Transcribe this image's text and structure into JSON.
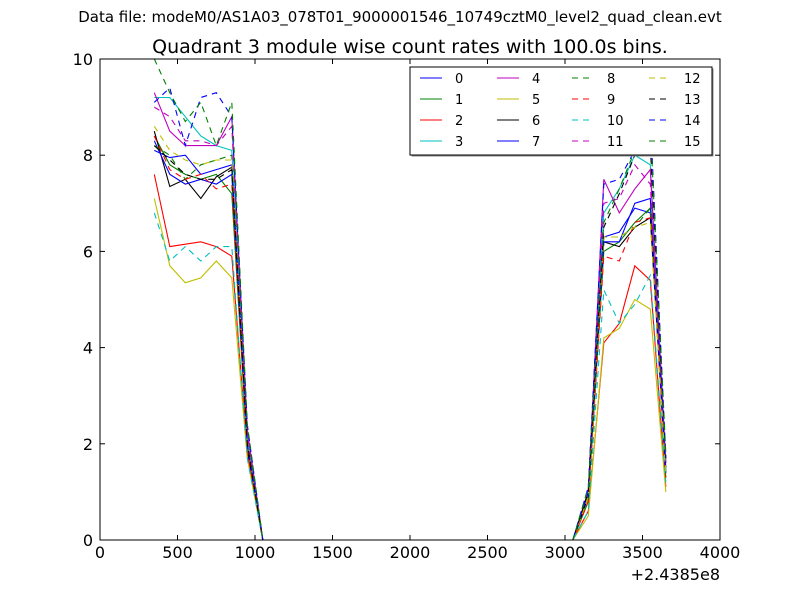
{
  "page_title": "Data file: modeM0/AS1A03_078T01_9000001546_10749cztM0_level2_quad_clean.evt",
  "chart_data": {
    "type": "line",
    "title": "Quadrant 3 module wise count rates with 100.0s bins.",
    "xlabel": "",
    "ylabel": "",
    "xlim": [
      0,
      4000
    ],
    "ylim": [
      0,
      10
    ],
    "x_ticks": [
      0,
      500,
      1000,
      1500,
      2000,
      2500,
      3000,
      3500,
      4000
    ],
    "y_ticks": [
      0,
      2,
      4,
      6,
      8,
      10
    ],
    "x_offset_label": "+2.4385e8",
    "grid": false,
    "legend_position": "top-right",
    "legend_columns": 4,
    "x": [
      350,
      450,
      550,
      650,
      750,
      850,
      950,
      1050,
      3050,
      3150,
      3250,
      3350,
      3450,
      3550,
      3650
    ],
    "series": [
      {
        "name": "0",
        "color": "#0000ff",
        "dash": "solid",
        "values": [
          8.1,
          7.95,
          8.0,
          7.6,
          7.7,
          7.8,
          2.0,
          0.0,
          0.0,
          0.9,
          6.3,
          6.4,
          6.9,
          6.8,
          1.5
        ]
      },
      {
        "name": "1",
        "color": "#008000",
        "dash": "solid",
        "values": [
          8.4,
          7.8,
          7.6,
          7.5,
          7.6,
          7.2,
          1.9,
          0.0,
          0.0,
          0.8,
          6.0,
          6.2,
          6.6,
          6.9,
          1.3
        ]
      },
      {
        "name": "2",
        "color": "#ff0000",
        "dash": "solid",
        "values": [
          7.6,
          6.1,
          6.15,
          6.2,
          6.1,
          5.9,
          1.8,
          0.0,
          0.0,
          0.6,
          4.1,
          4.5,
          5.7,
          5.4,
          1.1
        ]
      },
      {
        "name": "3",
        "color": "#00bfbf",
        "dash": "solid",
        "values": [
          9.2,
          9.2,
          8.8,
          8.4,
          8.2,
          8.1,
          2.2,
          0.0,
          0.0,
          1.0,
          6.8,
          7.3,
          8.0,
          7.8,
          1.6
        ]
      },
      {
        "name": "4",
        "color": "#bf00bf",
        "dash": "solid",
        "values": [
          9.3,
          8.5,
          8.2,
          8.2,
          8.2,
          8.8,
          2.3,
          0.0,
          0.0,
          1.0,
          7.5,
          6.8,
          7.3,
          7.7,
          1.6
        ]
      },
      {
        "name": "5",
        "color": "#bfbf00",
        "dash": "solid",
        "values": [
          7.1,
          5.7,
          5.35,
          5.45,
          5.8,
          5.45,
          1.7,
          0.0,
          0.0,
          0.5,
          4.2,
          4.4,
          5.0,
          4.8,
          1.0
        ]
      },
      {
        "name": "6",
        "color": "#000000",
        "dash": "solid",
        "values": [
          8.5,
          7.35,
          7.5,
          7.1,
          7.55,
          7.75,
          1.9,
          0.0,
          0.0,
          0.9,
          6.2,
          6.1,
          6.5,
          6.7,
          1.4
        ]
      },
      {
        "name": "7",
        "color": "#0000ff",
        "dash": "solid",
        "values": [
          8.3,
          7.6,
          7.4,
          7.5,
          7.4,
          7.6,
          2.0,
          0.0,
          0.0,
          1.0,
          6.2,
          6.2,
          7.0,
          7.1,
          1.4
        ]
      },
      {
        "name": "8",
        "color": "#008000",
        "dash": "dashed",
        "values": [
          8.2,
          8.0,
          7.5,
          7.8,
          7.9,
          8.0,
          2.0,
          0.0,
          0.0,
          0.9,
          6.3,
          6.3,
          6.5,
          6.9,
          1.5
        ]
      },
      {
        "name": "9",
        "color": "#ff0000",
        "dash": "dashed",
        "values": [
          8.4,
          7.7,
          7.5,
          7.6,
          7.3,
          7.4,
          1.9,
          0.0,
          0.0,
          0.8,
          5.9,
          5.8,
          6.6,
          6.7,
          1.3
        ]
      },
      {
        "name": "10",
        "color": "#00bfbf",
        "dash": "dashed",
        "values": [
          6.8,
          5.8,
          6.1,
          5.8,
          6.1,
          6.1,
          1.7,
          0.0,
          0.0,
          0.6,
          5.2,
          4.5,
          4.9,
          5.5,
          1.2
        ]
      },
      {
        "name": "11",
        "color": "#bf00bf",
        "dash": "dashed",
        "values": [
          9.0,
          8.8,
          8.3,
          8.3,
          8.2,
          8.6,
          2.2,
          0.0,
          0.0,
          1.0,
          7.0,
          7.1,
          7.8,
          7.4,
          1.6
        ]
      },
      {
        "name": "12",
        "color": "#bfbf00",
        "dash": "dashed",
        "values": [
          8.6,
          8.1,
          7.9,
          7.8,
          7.9,
          7.9,
          2.0,
          0.0,
          0.0,
          0.9,
          6.3,
          6.3,
          6.5,
          6.6,
          1.4
        ]
      },
      {
        "name": "13",
        "color": "#000000",
        "dash": "dashed",
        "values": [
          8.2,
          7.9,
          7.6,
          7.5,
          7.5,
          7.7,
          2.0,
          0.0,
          0.0,
          1.0,
          6.5,
          7.2,
          8.0,
          8.2,
          1.7
        ]
      },
      {
        "name": "14",
        "color": "#0000ff",
        "dash": "dashed",
        "values": [
          9.1,
          9.4,
          8.2,
          9.2,
          9.3,
          8.8,
          2.4,
          0.0,
          0.0,
          1.1,
          7.4,
          7.5,
          8.1,
          8.8,
          1.7
        ]
      },
      {
        "name": "15",
        "color": "#008000",
        "dash": "dashed",
        "values": [
          10.0,
          9.3,
          8.7,
          9.1,
          8.2,
          9.1,
          2.4,
          0.0,
          0.0,
          1.1,
          6.6,
          7.3,
          8.1,
          8.6,
          1.8
        ]
      }
    ]
  }
}
